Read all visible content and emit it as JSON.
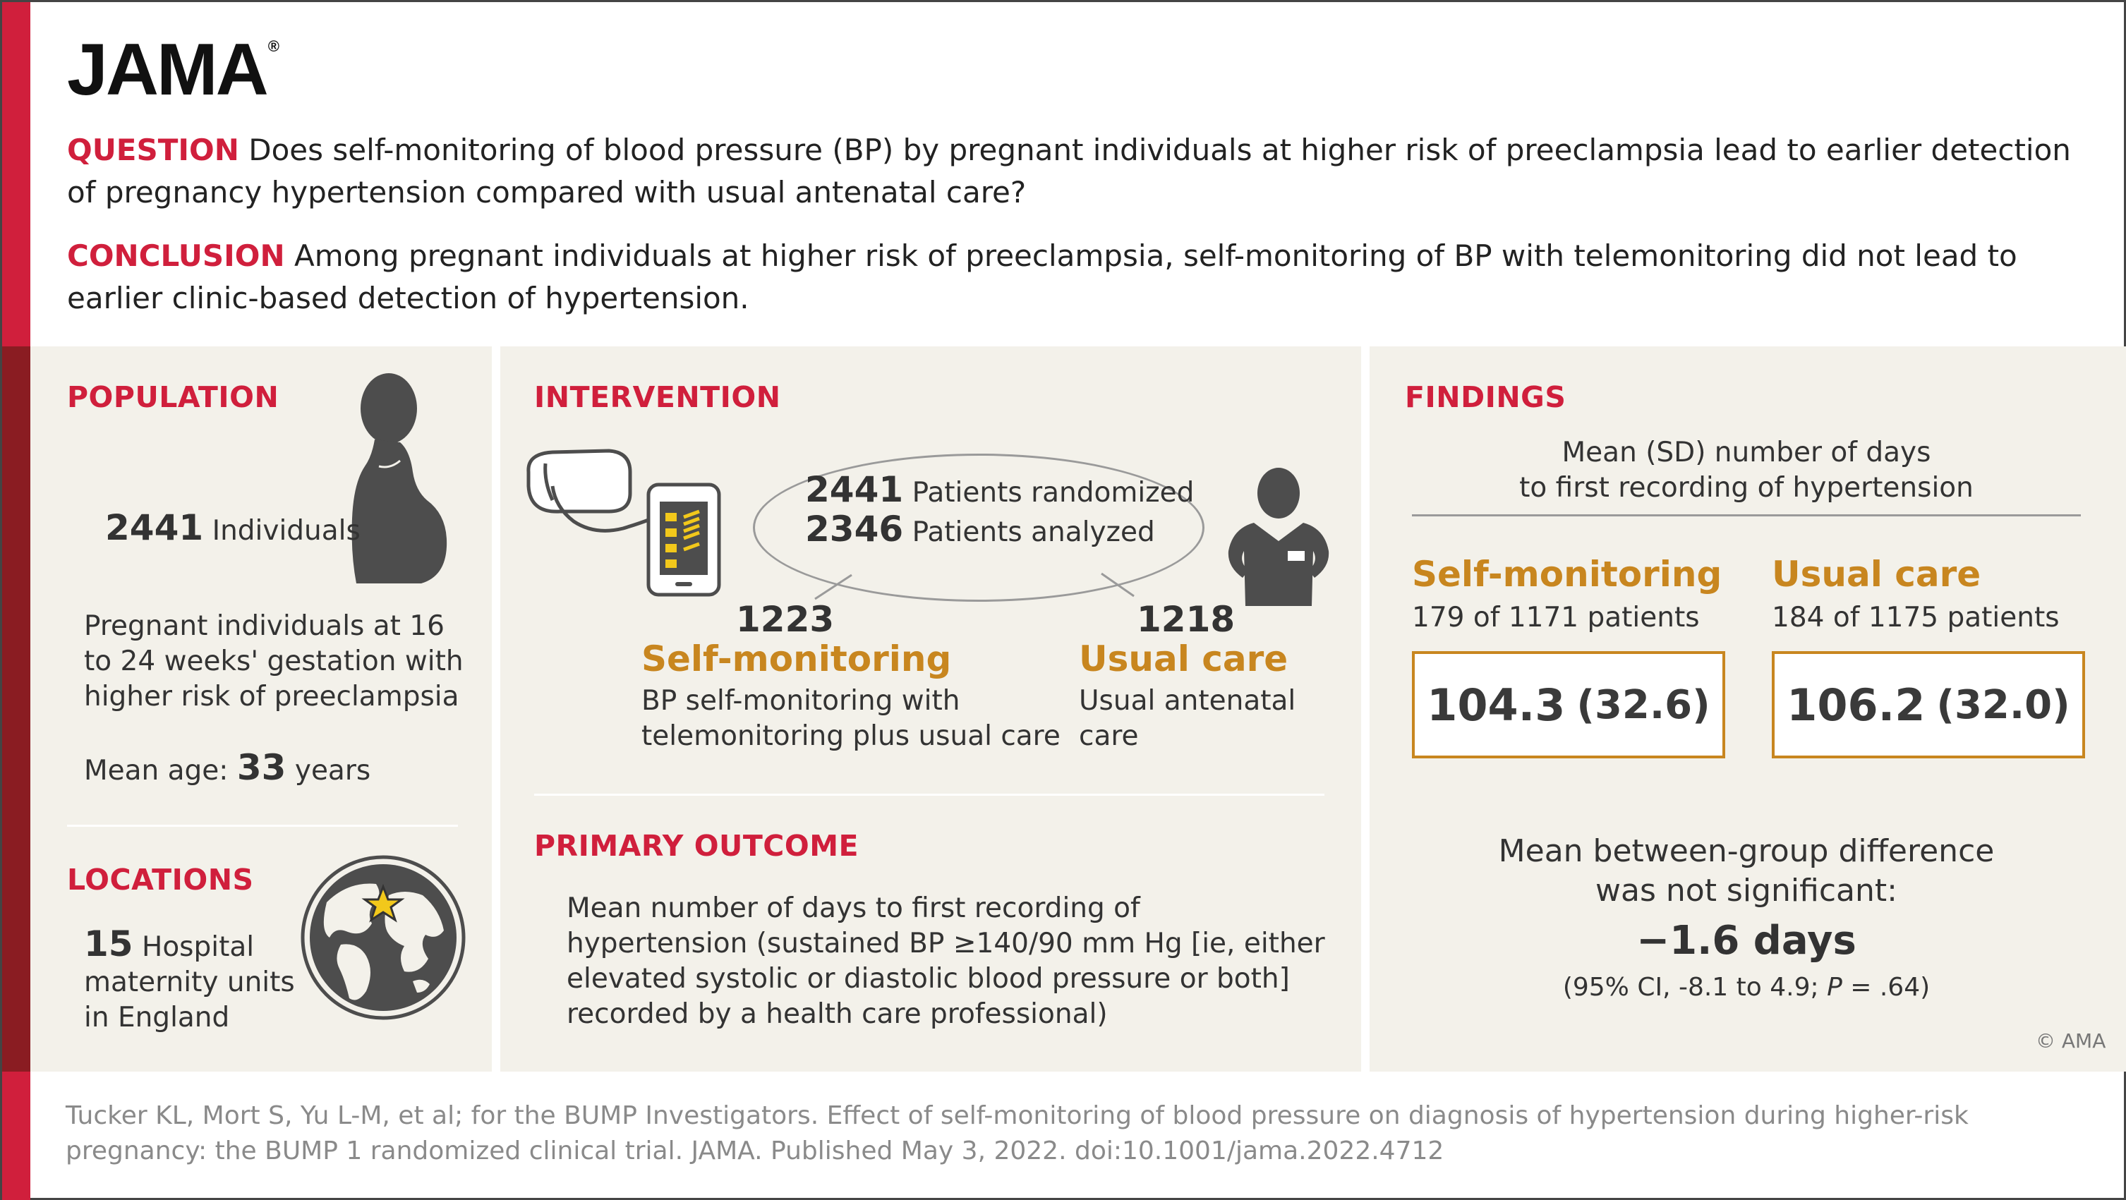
{
  "brand": {
    "logo": "JAMA",
    "registered": "®",
    "accent_color": "#d01f3c",
    "gold_color": "#c8861f"
  },
  "question": {
    "label": "QUESTION",
    "text": "Does self-monitoring of blood pressure (BP) by pregnant individuals at higher risk of preeclampsia lead to earlier detection of pregnancy hypertension compared with usual antenatal care?"
  },
  "conclusion": {
    "label": "CONCLUSION",
    "text": "Among pregnant individuals at higher risk of preeclampsia, self-monitoring of BP with telemonitoring did not lead to earlier clinic-based detection of hypertension."
  },
  "population": {
    "title": "POPULATION",
    "count": "2441",
    "count_label": "Individuals",
    "description": "Pregnant individuals at 16 to 24 weeks' gestation with higher risk of preeclampsia",
    "mean_age_label": "Mean age:",
    "mean_age_value": "33",
    "mean_age_unit": "years",
    "icon": "pregnant-person-icon"
  },
  "locations": {
    "title": "LOCATIONS",
    "count": "15",
    "text_line1": "Hospital",
    "text_rest": "maternity units in England",
    "icon": "globe-star-icon"
  },
  "intervention": {
    "title": "INTERVENTION",
    "randomized_count": "2441",
    "randomized_label": "Patients randomized",
    "analyzed_count": "2346",
    "analyzed_label": "Patients analyzed",
    "self": {
      "count": "1223",
      "name": "Self-monitoring",
      "description": "BP self-monitoring with telemonitoring plus usual care"
    },
    "usual": {
      "count": "1218",
      "name": "Usual care",
      "description": "Usual antenatal care"
    },
    "icons": [
      "bp-monitor-icon",
      "clinician-icon"
    ]
  },
  "primary_outcome": {
    "title": "PRIMARY OUTCOME",
    "text": "Mean number of days to first recording of hypertension (sustained BP ≥140/90 mm Hg [ie, either elevated systolic or diastolic  blood pressure or both] recorded by a health care professional)"
  },
  "findings": {
    "title": "FINDINGS",
    "subtitle_line1": "Mean (SD) number of days",
    "subtitle_line2": "to first recording of hypertension",
    "self": {
      "name": "Self-monitoring",
      "patients": "179 of 1171 patients",
      "mean": "104.3",
      "sd": "(32.6)"
    },
    "usual": {
      "name": "Usual care",
      "patients": "184 of 1175 patients",
      "mean": "106.2",
      "sd": "(32.0)"
    },
    "diff_line1": "Mean between-group difference",
    "diff_line2": "was not significant:",
    "diff_value": "−1.6 days",
    "ci_text": "(95% CI, -8.1 to 4.9;",
    "p_label": "P",
    "p_value": "= .64)"
  },
  "copyright": "© AMA",
  "citation": "Tucker KL, Mort S, Yu L-M, et al; for the BUMP Investigators. Effect of self-monitoring of blood pressure on diagnosis of hypertension during higher-risk pregnancy: the BUMP 1 randomized clinical trial. JAMA. Published May 3, 2022. doi:10.1001/jama.2022.4712"
}
